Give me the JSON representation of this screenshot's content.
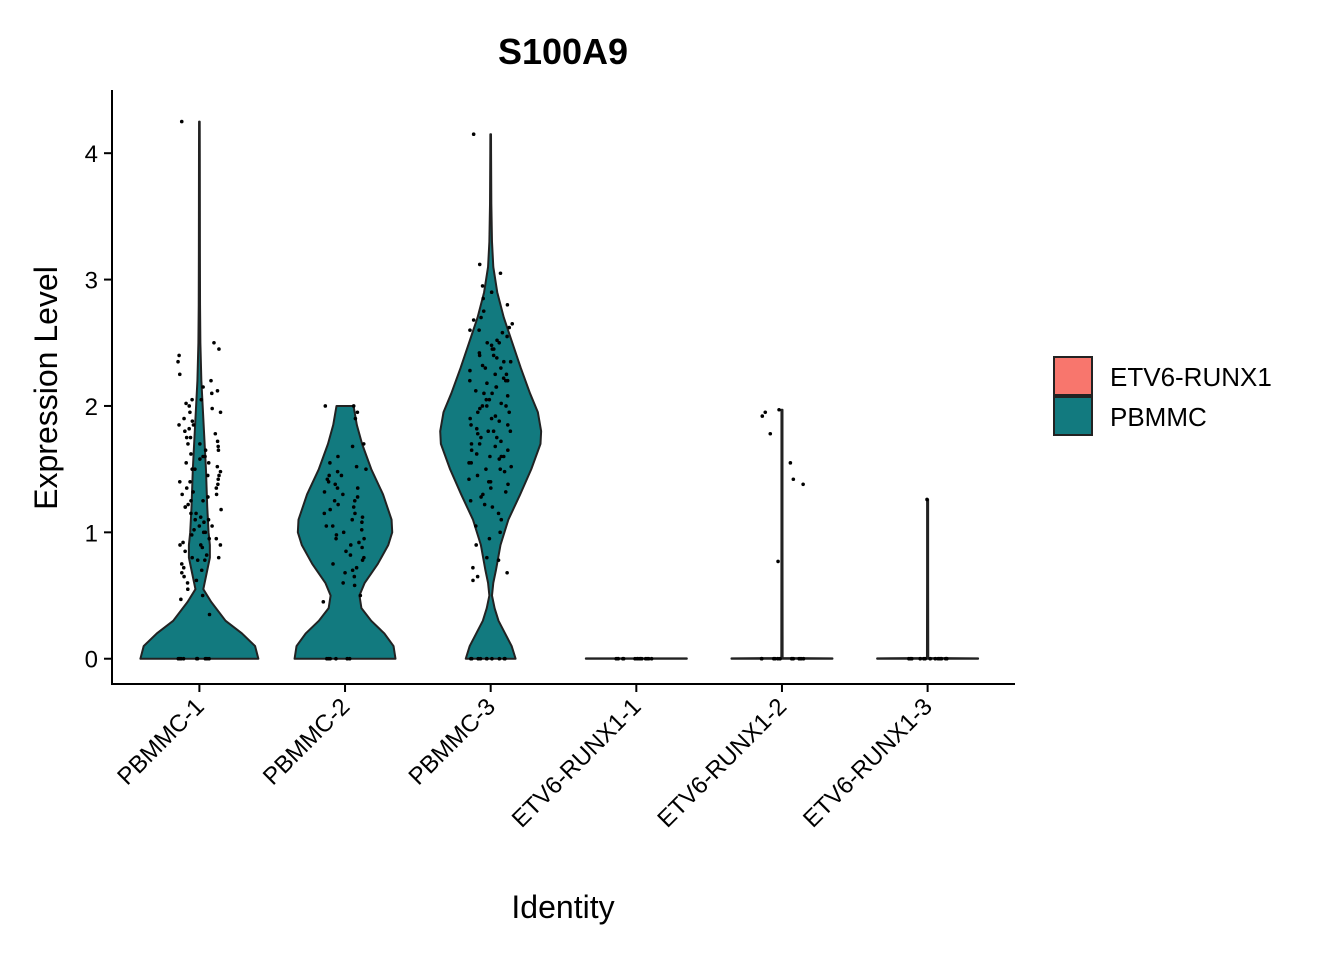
{
  "chart_data": {
    "type": "violin",
    "title": "S100A9",
    "xlabel": "Identity",
    "ylabel": "Expression Level",
    "ylim": [
      -0.2,
      4.5
    ],
    "yticks": [
      0,
      1,
      2,
      3,
      4
    ],
    "categories": [
      "PBMMC-1",
      "PBMMC-2",
      "PBMMC-3",
      "ETV6-RUNX1-1",
      "ETV6-RUNX1-2",
      "ETV6-RUNX1-3"
    ],
    "category_group": [
      "PBMMC",
      "PBMMC",
      "PBMMC",
      "ETV6-RUNX1",
      "ETV6-RUNX1",
      "ETV6-RUNX1"
    ],
    "groups": [
      {
        "name": "ETV6-RUNX1",
        "color": "#F8766D"
      },
      {
        "name": "PBMMC",
        "color": "#127A7F"
      }
    ],
    "violins": [
      {
        "category": "PBMMC-1",
        "min": 0,
        "max": 4.25,
        "profile": [
          [
            0,
            0.9
          ],
          [
            0.1,
            0.85
          ],
          [
            0.2,
            0.65
          ],
          [
            0.3,
            0.4
          ],
          [
            0.45,
            0.18
          ],
          [
            0.55,
            0.06
          ],
          [
            0.7,
            0.12
          ],
          [
            0.8,
            0.16
          ],
          [
            0.9,
            0.16
          ],
          [
            1.0,
            0.14
          ],
          [
            1.2,
            0.12
          ],
          [
            1.5,
            0.1
          ],
          [
            1.8,
            0.07
          ],
          [
            2.0,
            0.05
          ],
          [
            2.2,
            0.03
          ],
          [
            2.5,
            0.015
          ],
          [
            2.8,
            0.01
          ],
          [
            3.2,
            0.008
          ],
          [
            3.6,
            0.007
          ],
          [
            4.0,
            0.006
          ],
          [
            4.25,
            0.005
          ]
        ]
      },
      {
        "category": "PBMMC-2",
        "min": 0,
        "max": 2.0,
        "profile": [
          [
            0,
            0.77
          ],
          [
            0.1,
            0.74
          ],
          [
            0.2,
            0.6
          ],
          [
            0.3,
            0.4
          ],
          [
            0.4,
            0.25
          ],
          [
            0.5,
            0.22
          ],
          [
            0.6,
            0.3
          ],
          [
            0.75,
            0.5
          ],
          [
            0.9,
            0.66
          ],
          [
            1.0,
            0.72
          ],
          [
            1.1,
            0.71
          ],
          [
            1.3,
            0.58
          ],
          [
            1.5,
            0.4
          ],
          [
            1.7,
            0.26
          ],
          [
            1.85,
            0.18
          ],
          [
            2.0,
            0.13
          ]
        ]
      },
      {
        "category": "PBMMC-3",
        "min": 0,
        "max": 4.15,
        "profile": [
          [
            0,
            0.38
          ],
          [
            0.1,
            0.32
          ],
          [
            0.2,
            0.22
          ],
          [
            0.3,
            0.12
          ],
          [
            0.4,
            0.06
          ],
          [
            0.5,
            0.02
          ],
          [
            0.6,
            0.04
          ],
          [
            0.7,
            0.08
          ],
          [
            0.9,
            0.15
          ],
          [
            1.1,
            0.27
          ],
          [
            1.3,
            0.45
          ],
          [
            1.5,
            0.62
          ],
          [
            1.7,
            0.76
          ],
          [
            1.8,
            0.77
          ],
          [
            1.95,
            0.72
          ],
          [
            2.1,
            0.6
          ],
          [
            2.3,
            0.46
          ],
          [
            2.5,
            0.33
          ],
          [
            2.7,
            0.2
          ],
          [
            2.9,
            0.1
          ],
          [
            3.1,
            0.04
          ],
          [
            3.3,
            0.02
          ],
          [
            3.6,
            0.01
          ],
          [
            4.0,
            0.006
          ],
          [
            4.15,
            0.005
          ]
        ]
      },
      {
        "category": "ETV6-RUNX1-1",
        "min": 0,
        "max": 0,
        "profile": [
          [
            0,
            0.77
          ],
          [
            0.003,
            0.77
          ]
        ]
      },
      {
        "category": "ETV6-RUNX1-2",
        "min": 0,
        "max": 1.97,
        "profile": [
          [
            0,
            0.77
          ],
          [
            0.003,
            0.77
          ],
          [
            0.006,
            0.01
          ],
          [
            1.0,
            0.008
          ],
          [
            1.97,
            0.008
          ]
        ]
      },
      {
        "category": "ETV6-RUNX1-3",
        "min": 0,
        "max": 1.26,
        "profile": [
          [
            0,
            0.77
          ],
          [
            0.003,
            0.77
          ],
          [
            0.006,
            0.01
          ],
          [
            0.6,
            0.008
          ],
          [
            1.26,
            0.008
          ]
        ]
      }
    ],
    "points": [
      {
        "category": "PBMMC-1",
        "values": [
          4.25,
          2.5,
          2.45,
          2.4,
          2.35,
          2.25,
          2.2,
          2.15,
          2.12,
          2.1,
          2.05,
          2.02,
          2.0,
          1.98,
          1.95,
          1.9,
          1.88,
          1.85,
          1.82,
          1.8,
          1.78,
          1.75,
          1.72,
          1.7,
          1.68,
          1.65,
          1.62,
          1.6,
          1.58,
          1.55,
          1.52,
          1.5,
          1.48,
          1.45,
          1.42,
          1.4,
          1.38,
          1.35,
          1.32,
          1.3,
          1.28,
          1.25,
          1.22,
          1.2,
          1.18,
          1.15,
          1.12,
          1.1,
          1.08,
          1.05,
          1.02,
          1.0,
          0.98,
          0.95,
          0.92,
          0.9,
          0.9,
          0.88,
          0.85,
          0.82,
          0.8,
          0.8,
          0.78,
          0.78,
          0.75,
          0.72,
          0.7,
          0.68,
          0.65,
          0.62,
          0.6,
          0.55,
          0.5,
          0.47,
          0.35,
          1.6,
          1.5,
          1.4,
          1.3,
          1.2,
          1.1,
          1.0,
          0.95,
          0.9,
          1.7,
          1.55,
          1.45,
          1.35,
          1.25,
          1.15,
          1.05,
          2.05,
          1.95,
          1.85,
          1.75,
          1.65,
          0,
          0,
          0,
          0,
          0,
          0,
          0,
          0,
          0,
          0
        ]
      },
      {
        "category": "PBMMC-2",
        "values": [
          2.0,
          2.0,
          1.95,
          1.9,
          1.7,
          1.68,
          1.6,
          1.55,
          1.52,
          1.5,
          1.48,
          1.45,
          1.42,
          1.4,
          1.38,
          1.35,
          1.32,
          1.3,
          1.28,
          1.25,
          1.22,
          1.2,
          1.18,
          1.15,
          1.12,
          1.1,
          1.08,
          1.05,
          1.02,
          1.0,
          0.98,
          0.95,
          0.92,
          0.9,
          0.88,
          0.85,
          0.82,
          0.8,
          0.78,
          0.75,
          0.72,
          0.7,
          0.68,
          0.65,
          0.6,
          0.58,
          0.5,
          0.45,
          1.45,
          1.35,
          1.25,
          1.15,
          1.05,
          0.95,
          0,
          0,
          0,
          0,
          0,
          0
        ]
      },
      {
        "category": "PBMMC-3",
        "values": [
          4.15,
          3.12,
          3.05,
          2.95,
          2.9,
          2.85,
          2.8,
          2.75,
          2.7,
          2.68,
          2.65,
          2.62,
          2.6,
          2.58,
          2.55,
          2.52,
          2.5,
          2.48,
          2.45,
          2.42,
          2.4,
          2.38,
          2.35,
          2.32,
          2.3,
          2.28,
          2.25,
          2.22,
          2.2,
          2.18,
          2.15,
          2.12,
          2.1,
          2.08,
          2.05,
          2.02,
          2.0,
          1.98,
          1.95,
          1.92,
          1.9,
          1.88,
          1.85,
          1.82,
          1.8,
          1.78,
          1.75,
          1.72,
          1.7,
          1.68,
          1.65,
          1.62,
          1.6,
          1.58,
          1.55,
          1.52,
          1.5,
          1.48,
          1.45,
          1.42,
          1.4,
          1.38,
          1.35,
          1.32,
          1.3,
          1.28,
          1.25,
          1.22,
          1.2,
          1.15,
          1.1,
          1.05,
          1.0,
          0.95,
          0.9,
          0.8,
          0.78,
          0.72,
          0.68,
          0.65,
          0.62,
          2.4,
          2.3,
          2.2,
          2.1,
          2.0,
          1.9,
          1.8,
          1.7,
          1.6,
          1.5,
          2.45,
          2.35,
          2.25,
          2.15,
          2.05,
          1.95,
          1.85,
          1.75,
          1.65,
          1.55,
          2.6,
          2.5,
          2.2,
          2.0,
          1.8,
          1.6,
          1.4,
          0,
          0,
          0,
          0,
          0,
          0,
          0,
          0,
          0,
          0
        ]
      },
      {
        "category": "ETV6-RUNX1-1",
        "values": [
          0,
          0,
          0,
          0,
          0,
          0,
          0,
          0,
          0,
          0,
          0,
          0,
          0,
          0,
          0
        ]
      },
      {
        "category": "ETV6-RUNX1-2",
        "values": [
          1.97,
          1.95,
          1.92,
          1.78,
          1.55,
          1.42,
          1.38,
          0.77,
          0,
          0,
          0,
          0,
          0,
          0,
          0,
          0,
          0,
          0,
          0,
          0
        ]
      },
      {
        "category": "ETV6-RUNX1-3",
        "values": [
          1.26,
          0,
          0,
          0,
          0,
          0,
          0,
          0,
          0,
          0,
          0,
          0,
          0,
          0,
          0,
          0
        ]
      }
    ]
  }
}
